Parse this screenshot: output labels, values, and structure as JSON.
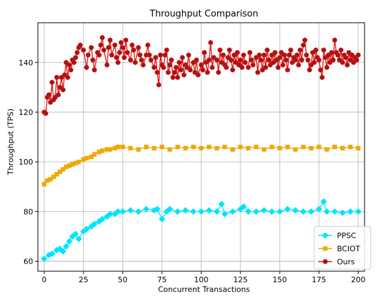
{
  "chart_data": {
    "type": "line",
    "title": "Throughput Comparison",
    "xlabel": "Concurrent Transactions",
    "ylabel": "Throughput (TPS)",
    "xlim": [
      -4,
      204
    ],
    "ylim": [
      56,
      156
    ],
    "xticks": [
      0,
      25,
      50,
      75,
      100,
      125,
      150,
      175,
      200
    ],
    "yticks": [
      60,
      80,
      100,
      120,
      140
    ],
    "grid": true,
    "legend_position": "bottom-right",
    "series": [
      {
        "name": "PPSC",
        "color": "#00e5ff",
        "marker": "diamond",
        "points": [
          [
            0,
            61
          ],
          [
            3,
            62.5
          ],
          [
            5,
            63
          ],
          [
            8,
            64.5
          ],
          [
            10,
            65
          ],
          [
            12,
            64
          ],
          [
            14,
            66
          ],
          [
            16,
            68
          ],
          [
            18,
            70
          ],
          [
            20,
            71
          ],
          [
            22,
            69
          ],
          [
            25,
            72
          ],
          [
            27,
            73
          ],
          [
            30,
            74
          ],
          [
            32,
            75
          ],
          [
            35,
            76
          ],
          [
            37,
            77
          ],
          [
            40,
            78
          ],
          [
            42,
            79
          ],
          [
            45,
            79
          ],
          [
            47,
            80
          ],
          [
            50,
            80
          ],
          [
            55,
            80.5
          ],
          [
            60,
            80
          ],
          [
            65,
            81
          ],
          [
            70,
            80.5
          ],
          [
            72,
            81
          ],
          [
            75,
            77
          ],
          [
            78,
            80
          ],
          [
            80,
            81
          ],
          [
            85,
            80
          ],
          [
            90,
            80.5
          ],
          [
            95,
            80
          ],
          [
            100,
            80
          ],
          [
            105,
            80.5
          ],
          [
            110,
            80
          ],
          [
            113,
            83
          ],
          [
            115,
            79
          ],
          [
            120,
            80
          ],
          [
            125,
            81
          ],
          [
            127,
            82
          ],
          [
            130,
            80
          ],
          [
            135,
            80
          ],
          [
            140,
            80.5
          ],
          [
            145,
            80
          ],
          [
            150,
            80
          ],
          [
            155,
            81
          ],
          [
            160,
            80.5
          ],
          [
            165,
            80
          ],
          [
            170,
            80
          ],
          [
            175,
            81
          ],
          [
            178,
            84
          ],
          [
            180,
            80
          ],
          [
            185,
            80
          ],
          [
            190,
            79.5
          ],
          [
            195,
            80
          ],
          [
            200,
            80
          ]
        ]
      },
      {
        "name": "BCIOT",
        "color": "#f0a800",
        "marker": "square",
        "points": [
          [
            0,
            91
          ],
          [
            2,
            92.5
          ],
          [
            4,
            93
          ],
          [
            6,
            94
          ],
          [
            8,
            95
          ],
          [
            10,
            96
          ],
          [
            12,
            97
          ],
          [
            14,
            98
          ],
          [
            16,
            98.5
          ],
          [
            18,
            99
          ],
          [
            20,
            99.5
          ],
          [
            22,
            100
          ],
          [
            25,
            101
          ],
          [
            27,
            101.5
          ],
          [
            30,
            102
          ],
          [
            32,
            103
          ],
          [
            35,
            104
          ],
          [
            37,
            104.5
          ],
          [
            40,
            105
          ],
          [
            42,
            105
          ],
          [
            45,
            105.5
          ],
          [
            47,
            106
          ],
          [
            50,
            106
          ],
          [
            55,
            105.5
          ],
          [
            60,
            105
          ],
          [
            65,
            106
          ],
          [
            70,
            105.5
          ],
          [
            75,
            106
          ],
          [
            80,
            105
          ],
          [
            85,
            106
          ],
          [
            90,
            105.5
          ],
          [
            95,
            106
          ],
          [
            100,
            105.5
          ],
          [
            105,
            106
          ],
          [
            110,
            105.5
          ],
          [
            115,
            106
          ],
          [
            120,
            105
          ],
          [
            125,
            106
          ],
          [
            130,
            105.5
          ],
          [
            135,
            106
          ],
          [
            140,
            105
          ],
          [
            145,
            106
          ],
          [
            150,
            105.5
          ],
          [
            155,
            106
          ],
          [
            160,
            105
          ],
          [
            165,
            106
          ],
          [
            170,
            105.5
          ],
          [
            175,
            106
          ],
          [
            180,
            105
          ],
          [
            185,
            106
          ],
          [
            190,
            105.5
          ],
          [
            195,
            106
          ],
          [
            200,
            105.5
          ]
        ]
      },
      {
        "name": "Ours",
        "color": "#e01010",
        "marker": "circle",
        "points": [
          [
            0,
            120
          ],
          [
            1,
            119.5
          ],
          [
            2,
            126
          ],
          [
            3,
            127
          ],
          [
            4,
            124
          ],
          [
            5,
            132
          ],
          [
            6,
            125
          ],
          [
            7,
            126
          ],
          [
            8,
            134
          ],
          [
            9,
            127
          ],
          [
            10,
            130
          ],
          [
            11,
            134
          ],
          [
            12,
            129
          ],
          [
            13,
            135
          ],
          [
            14,
            140
          ],
          [
            15,
            134
          ],
          [
            16,
            139
          ],
          [
            17,
            137
          ],
          [
            18,
            141
          ],
          [
            19,
            140
          ],
          [
            20,
            142
          ],
          [
            21,
            144
          ],
          [
            22,
            146
          ],
          [
            23,
            147
          ],
          [
            25,
            145
          ],
          [
            27,
            138
          ],
          [
            28,
            143
          ],
          [
            30,
            146
          ],
          [
            31,
            141
          ],
          [
            32,
            137
          ],
          [
            34,
            144
          ],
          [
            35,
            143
          ],
          [
            36,
            147
          ],
          [
            37,
            150
          ],
          [
            38,
            145
          ],
          [
            40,
            139
          ],
          [
            41,
            146
          ],
          [
            42,
            149
          ],
          [
            43,
            143
          ],
          [
            45,
            147
          ],
          [
            46,
            142
          ],
          [
            47,
            140
          ],
          [
            48,
            144
          ],
          [
            49,
            148
          ],
          [
            50,
            146
          ],
          [
            51,
            142
          ],
          [
            52,
            149
          ],
          [
            53,
            144
          ],
          [
            55,
            141
          ],
          [
            56,
            147
          ],
          [
            57,
            145
          ],
          [
            58,
            140
          ],
          [
            60,
            146
          ],
          [
            61,
            143
          ],
          [
            62,
            141
          ],
          [
            63,
            139
          ],
          [
            65,
            143
          ],
          [
            66,
            147
          ],
          [
            67,
            143
          ],
          [
            68,
            141
          ],
          [
            70,
            138
          ],
          [
            71,
            142
          ],
          [
            72,
            136
          ],
          [
            73,
            131
          ],
          [
            74,
            143
          ],
          [
            75,
            139
          ],
          [
            76,
            138
          ],
          [
            77,
            143
          ],
          [
            78,
            145
          ],
          [
            79,
            136
          ],
          [
            80,
            139
          ],
          [
            81,
            141
          ],
          [
            82,
            134
          ],
          [
            83,
            136
          ],
          [
            84,
            138
          ],
          [
            85,
            134
          ],
          [
            86,
            140
          ],
          [
            87,
            137
          ],
          [
            88,
            142
          ],
          [
            89,
            135
          ],
          [
            90,
            139
          ],
          [
            91,
            138
          ],
          [
            92,
            143
          ],
          [
            93,
            137
          ],
          [
            95,
            140
          ],
          [
            96,
            136
          ],
          [
            97,
            141
          ],
          [
            98,
            135
          ],
          [
            100,
            139
          ],
          [
            101,
            137
          ],
          [
            102,
            144
          ],
          [
            103,
            140
          ],
          [
            104,
            136
          ],
          [
            105,
            141
          ],
          [
            106,
            148
          ],
          [
            107,
            138
          ],
          [
            108,
            142
          ],
          [
            110,
            141
          ],
          [
            111,
            136
          ],
          [
            112,
            145
          ],
          [
            113,
            140
          ],
          [
            114,
            143
          ],
          [
            115,
            139
          ],
          [
            116,
            138
          ],
          [
            117,
            142
          ],
          [
            118,
            145
          ],
          [
            119,
            141
          ],
          [
            120,
            137
          ],
          [
            121,
            143
          ],
          [
            122,
            140
          ],
          [
            123,
            144
          ],
          [
            124,
            139
          ],
          [
            125,
            141
          ],
          [
            126,
            138
          ],
          [
            127,
            143
          ],
          [
            128,
            140
          ],
          [
            130,
            138
          ],
          [
            131,
            144
          ],
          [
            132,
            141
          ],
          [
            133,
            139
          ],
          [
            135,
            142
          ],
          [
            136,
            136
          ],
          [
            137,
            143
          ],
          [
            138,
            141
          ],
          [
            139,
            137
          ],
          [
            140,
            143
          ],
          [
            141,
            138
          ],
          [
            142,
            145
          ],
          [
            143,
            141
          ],
          [
            144,
            139
          ],
          [
            145,
            143
          ],
          [
            146,
            140
          ],
          [
            147,
            144
          ],
          [
            148,
            141
          ],
          [
            149,
            138
          ],
          [
            150,
            142
          ],
          [
            151,
            144
          ],
          [
            152,
            139
          ],
          [
            153,
            143
          ],
          [
            154,
            141
          ],
          [
            155,
            137
          ],
          [
            156,
            143
          ],
          [
            157,
            145
          ],
          [
            158,
            140
          ],
          [
            159,
            142
          ],
          [
            160,
            141
          ],
          [
            161,
            143
          ],
          [
            162,
            139
          ],
          [
            163,
            145
          ],
          [
            164,
            141
          ],
          [
            165,
            147
          ],
          [
            166,
            149
          ],
          [
            167,
            143
          ],
          [
            168,
            141
          ],
          [
            169,
            137
          ],
          [
            170,
            139
          ],
          [
            171,
            144
          ],
          [
            172,
            140
          ],
          [
            173,
            145
          ],
          [
            174,
            142
          ],
          [
            175,
            141
          ],
          [
            176,
            137
          ],
          [
            177,
            134
          ],
          [
            178,
            145
          ],
          [
            179,
            142
          ],
          [
            180,
            138
          ],
          [
            181,
            143
          ],
          [
            182,
            140
          ],
          [
            183,
            144
          ],
          [
            184,
            141
          ],
          [
            185,
            149
          ],
          [
            186,
            144
          ],
          [
            187,
            143
          ],
          [
            188,
            141
          ],
          [
            189,
            145
          ],
          [
            190,
            140
          ],
          [
            191,
            143
          ],
          [
            192,
            142
          ],
          [
            193,
            139
          ],
          [
            194,
            144
          ],
          [
            195,
            141
          ],
          [
            196,
            143
          ],
          [
            197,
            140
          ],
          [
            198,
            142
          ],
          [
            199,
            141
          ],
          [
            200,
            143
          ]
        ]
      }
    ]
  }
}
